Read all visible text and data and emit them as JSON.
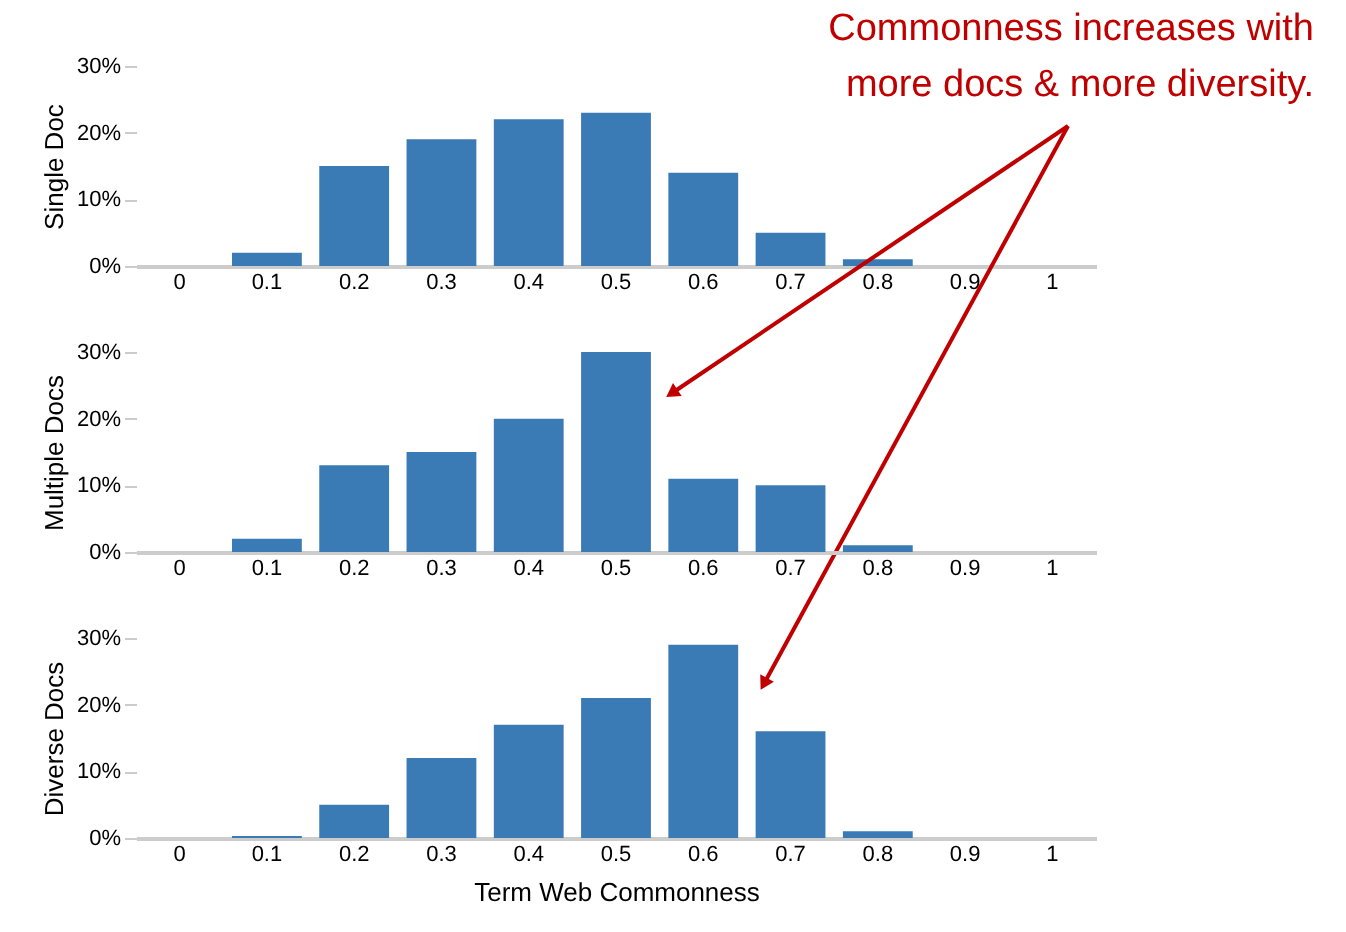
{
  "chart_data": [
    {
      "type": "bar",
      "categories": [
        "0",
        "0.1",
        "0.2",
        "0.3",
        "0.4",
        "0.5",
        "0.6",
        "0.7",
        "0.8",
        "0.9",
        "1"
      ],
      "values": [
        0,
        2,
        15,
        19,
        22,
        23,
        14,
        5,
        1,
        0,
        0
      ],
      "color": "#3a7bb5",
      "ylabel": "Single Doc",
      "ylim": [
        0,
        30
      ],
      "yticks": [
        {
          "value": 0,
          "label": "0%"
        },
        {
          "value": 10,
          "label": "10%"
        },
        {
          "value": 20,
          "label": "20%"
        },
        {
          "value": 30,
          "label": "30%"
        }
      ],
      "grid": false,
      "annotations": [
        "Commonness increases with more docs & more diversity."
      ]
    },
    {
      "type": "bar",
      "categories": [
        "0",
        "0.1",
        "0.2",
        "0.3",
        "0.4",
        "0.5",
        "0.6",
        "0.7",
        "0.8",
        "0.9",
        "1"
      ],
      "values": [
        0,
        2,
        13,
        15,
        20,
        30,
        11,
        10,
        1,
        0,
        0
      ],
      "color": "#3a7bb5",
      "ylabel": "Multiple Docs",
      "ylim": [
        0,
        30
      ],
      "yticks": [
        {
          "value": 0,
          "label": "0%"
        },
        {
          "value": 10,
          "label": "10%"
        },
        {
          "value": 20,
          "label": "20%"
        },
        {
          "value": 30,
          "label": "30%"
        }
      ],
      "grid": false
    },
    {
      "type": "bar",
      "categories": [
        "0",
        "0.1",
        "0.2",
        "0.3",
        "0.4",
        "0.5",
        "0.6",
        "0.7",
        "0.8",
        "0.9",
        "1"
      ],
      "values": [
        0,
        0.3,
        5,
        12,
        17,
        21,
        29,
        16,
        1,
        0,
        0
      ],
      "color": "#3a7bb5",
      "ylabel": "Diverse Docs",
      "xlabel": "Term Web Commonness",
      "ylim": [
        0,
        30
      ],
      "yticks": [
        {
          "value": 0,
          "label": "0%"
        },
        {
          "value": 10,
          "label": "10%"
        },
        {
          "value": 20,
          "label": "20%"
        },
        {
          "value": 30,
          "label": "30%"
        }
      ],
      "grid": false
    }
  ]
}
